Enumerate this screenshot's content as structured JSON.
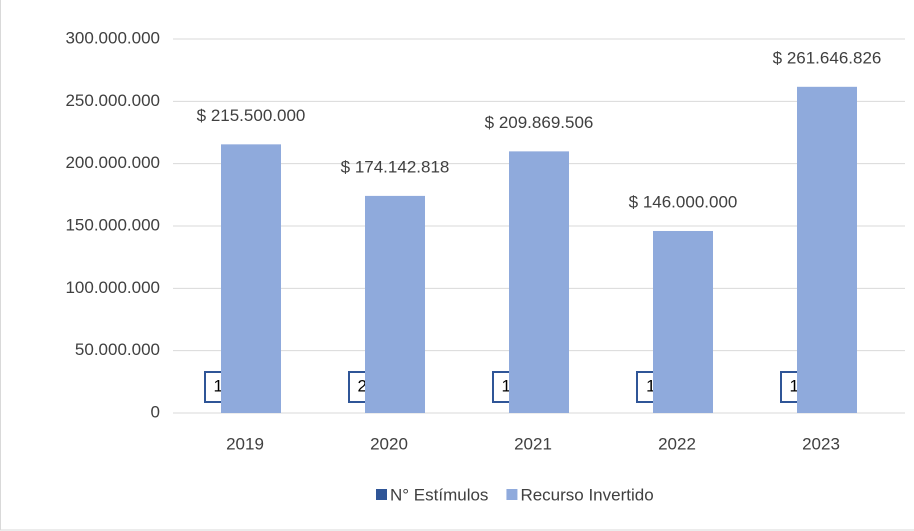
{
  "chart_data": {
    "type": "bar",
    "categories": [
      "2019",
      "2020",
      "2021",
      "2022",
      "2023"
    ],
    "series": [
      {
        "name": "N° Estímulos",
        "color": "#2f5597",
        "values": [
          19,
          21,
          18,
          11,
          19
        ]
      },
      {
        "name": "Recurso Invertido",
        "color": "#8faadc",
        "values": [
          215500000,
          174142818,
          209869506,
          146000000,
          261646826
        ],
        "value_labels": [
          "$ 215.500.000",
          "$ 174.142.818",
          "$ 209.869.506",
          "$ 146.000.000",
          "$ 261.646.826"
        ]
      }
    ],
    "ylim": [
      0,
      300000000
    ],
    "yticks": [
      0,
      {
        "value": 50000000,
        "label": "50.000.000"
      },
      {
        "value": 100000000,
        "label": "100.000.000"
      },
      {
        "value": 150000000,
        "label": "150.000.000"
      },
      {
        "value": 200000000,
        "label": "200.000.000"
      },
      {
        "value": 250000000,
        "label": "250.000.000"
      },
      {
        "value": 300000000,
        "label": "300.000.000"
      }
    ],
    "grid": true,
    "legend": "bottom"
  }
}
